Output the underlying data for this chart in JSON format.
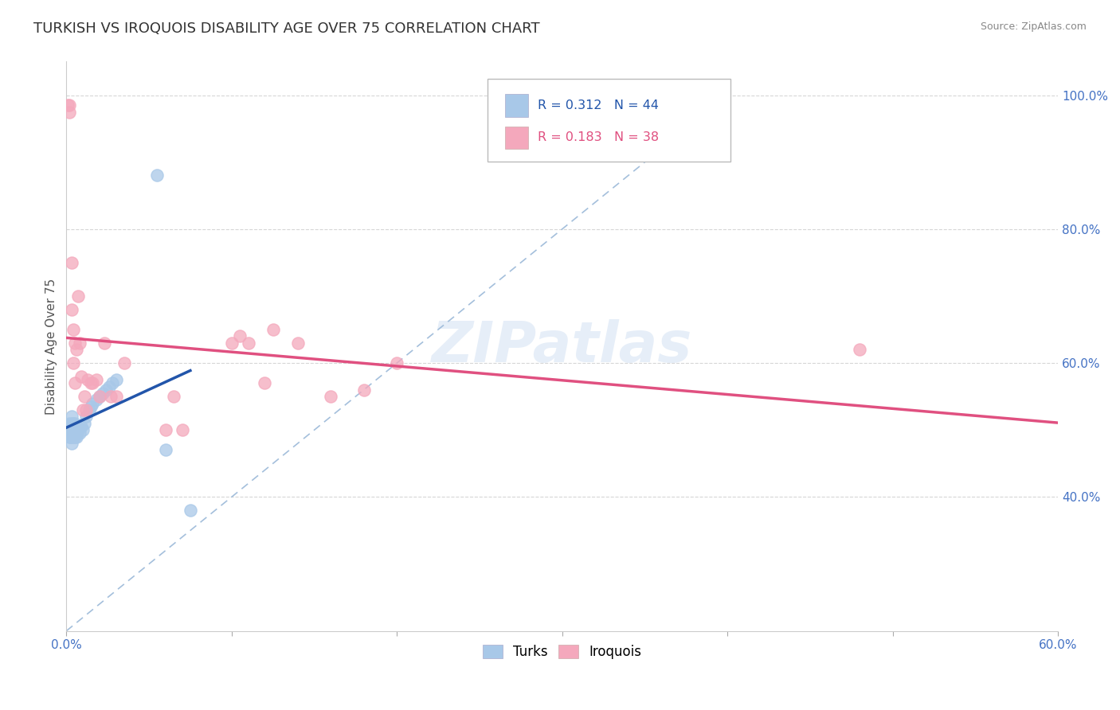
{
  "title": "TURKISH VS IROQUOIS DISABILITY AGE OVER 75 CORRELATION CHART",
  "source": "Source: ZipAtlas.com",
  "ylabel": "Disability Age Over 75",
  "xlim": [
    0.0,
    0.6
  ],
  "ylim": [
    0.2,
    1.05
  ],
  "xtick_positions": [
    0.0,
    0.1,
    0.2,
    0.3,
    0.4,
    0.5,
    0.6
  ],
  "xticklabels": [
    "0.0%",
    "",
    "",
    "",
    "",
    "",
    "60.0%"
  ],
  "ytick_positions": [
    0.4,
    0.6,
    0.8,
    1.0
  ],
  "yticklabels": [
    "40.0%",
    "60.0%",
    "80.0%",
    "100.0%"
  ],
  "turks_R": 0.312,
  "turks_N": 44,
  "iroquois_R": 0.183,
  "iroquois_N": 38,
  "turks_color": "#a8c8e8",
  "iroquois_color": "#f4a8bc",
  "turks_line_color": "#2255aa",
  "iroquois_line_color": "#e05080",
  "ref_line_color": "#9ab8d8",
  "watermark": "ZIPatlas",
  "turks_x": [
    0.0005,
    0.001,
    0.001,
    0.0015,
    0.002,
    0.002,
    0.002,
    0.0025,
    0.003,
    0.003,
    0.003,
    0.003,
    0.003,
    0.0035,
    0.004,
    0.004,
    0.004,
    0.004,
    0.005,
    0.005,
    0.005,
    0.005,
    0.006,
    0.006,
    0.006,
    0.007,
    0.008,
    0.009,
    0.01,
    0.011,
    0.012,
    0.014,
    0.015,
    0.016,
    0.018,
    0.02,
    0.022,
    0.024,
    0.026,
    0.028,
    0.03,
    0.055,
    0.06,
    0.075
  ],
  "turks_y": [
    0.5,
    0.495,
    0.505,
    0.5,
    0.49,
    0.5,
    0.51,
    0.49,
    0.48,
    0.49,
    0.5,
    0.51,
    0.52,
    0.5,
    0.49,
    0.5,
    0.505,
    0.51,
    0.49,
    0.5,
    0.505,
    0.51,
    0.49,
    0.495,
    0.505,
    0.5,
    0.495,
    0.505,
    0.5,
    0.51,
    0.52,
    0.53,
    0.535,
    0.54,
    0.545,
    0.55,
    0.555,
    0.56,
    0.565,
    0.57,
    0.575,
    0.88,
    0.47,
    0.38
  ],
  "iroquois_x": [
    0.001,
    0.002,
    0.002,
    0.003,
    0.003,
    0.004,
    0.004,
    0.005,
    0.005,
    0.006,
    0.007,
    0.008,
    0.009,
    0.01,
    0.011,
    0.012,
    0.013,
    0.015,
    0.016,
    0.018,
    0.02,
    0.023,
    0.027,
    0.03,
    0.035,
    0.06,
    0.065,
    0.07,
    0.1,
    0.105,
    0.11,
    0.12,
    0.125,
    0.14,
    0.16,
    0.18,
    0.2,
    0.48
  ],
  "iroquois_y": [
    0.985,
    0.985,
    0.975,
    0.68,
    0.75,
    0.65,
    0.6,
    0.63,
    0.57,
    0.62,
    0.7,
    0.63,
    0.58,
    0.53,
    0.55,
    0.53,
    0.575,
    0.57,
    0.57,
    0.575,
    0.55,
    0.63,
    0.55,
    0.55,
    0.6,
    0.5,
    0.55,
    0.5,
    0.63,
    0.64,
    0.63,
    0.57,
    0.65,
    0.63,
    0.55,
    0.56,
    0.6,
    0.62
  ]
}
